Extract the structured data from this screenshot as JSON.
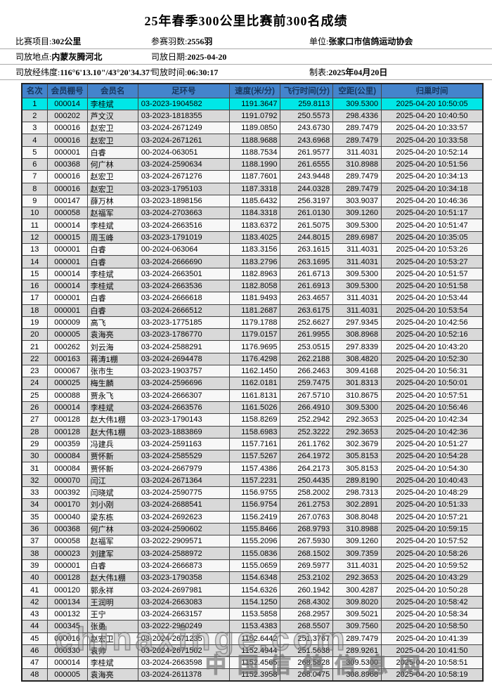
{
  "title": "25年春季300公里比赛前300名成绩",
  "info_rows": [
    [
      {
        "label": "比赛项目:",
        "value": "302公里"
      },
      {
        "label": "参赛羽数:",
        "value": "2556羽"
      },
      {
        "label": "单位:",
        "value": "张家口市信鸽运动协会"
      }
    ],
    [
      {
        "label": "司放地点:",
        "value": "内蒙灰腾河北"
      },
      {
        "label": "司放日期:",
        "value": "2025-04-20"
      }
    ],
    [
      {
        "label": "司放经纬度:",
        "value": "116°6'13.10\"/43°20'34.37\""
      },
      {
        "label": "司放时间:",
        "value": "06:30:17"
      },
      {
        "label": "制表:",
        "value": "2025年04月20日"
      }
    ]
  ],
  "watermark": {
    "latin": "chinaxinge.com",
    "cn": "中国信鸽信息网"
  },
  "colors": {
    "header_bg": "#4484cc",
    "header_text": "#17365d",
    "highlight_row": "#00e7e7",
    "even_row": "#d9d9d9",
    "odd_row": "#f7f7f7"
  },
  "table": {
    "columns": [
      "名次",
      "会员棚号",
      "会员名",
      "足环号",
      "速度(米/分)",
      "飞行时间(分)",
      "空距(公里)",
      "归巢时间"
    ],
    "rows": [
      [
        "1",
        "000014",
        "李桂斌",
        "03-2023-1904582",
        "1191.3647",
        "259.8113",
        "309.5300",
        "2025-04-20 10:50:05"
      ],
      [
        "2",
        "000202",
        "芦文汉",
        "03-2023-1818355",
        "1191.0792",
        "250.5573",
        "298.4336",
        "2025-04-20 10:40:50"
      ],
      [
        "3",
        "000016",
        "赵宏卫",
        "03-2024-2671249",
        "1189.0850",
        "243.6730",
        "289.7479",
        "2025-04-20 10:33:57"
      ],
      [
        "4",
        "000016",
        "赵宏卫",
        "03-2024-2671261",
        "1188.9688",
        "243.6968",
        "289.7479",
        "2025-04-20 10:33:58"
      ],
      [
        "5",
        "000001",
        "白睿",
        "00-2024-063051",
        "1188.7534",
        "261.9577",
        "311.4031",
        "2025-04-20 10:52:14"
      ],
      [
        "6",
        "000368",
        "何广林",
        "03-2024-2590634",
        "1188.1990",
        "261.6555",
        "310.8988",
        "2025-04-20 10:51:56"
      ],
      [
        "7",
        "000016",
        "赵宏卫",
        "03-2024-2671276",
        "1187.7601",
        "243.9448",
        "289.7479",
        "2025-04-20 10:34:13"
      ],
      [
        "8",
        "000016",
        "赵宏卫",
        "03-2023-1795103",
        "1187.3318",
        "244.0328",
        "289.7479",
        "2025-04-20 10:34:18"
      ],
      [
        "9",
        "000147",
        "薛万林",
        "03-2023-1898156",
        "1185.6432",
        "256.3197",
        "303.9037",
        "2025-04-20 10:46:36"
      ],
      [
        "10",
        "000058",
        "赵福军",
        "03-2024-2703663",
        "1184.3318",
        "261.0130",
        "309.1260",
        "2025-04-20 10:51:17"
      ],
      [
        "11",
        "000014",
        "李桂斌",
        "03-2024-2663516",
        "1183.6372",
        "261.5075",
        "309.5300",
        "2025-04-20 10:51:47"
      ],
      [
        "12",
        "000015",
        "周玉峰",
        "03-2023-1791019",
        "1183.4025",
        "244.8015",
        "289.6987",
        "2025-04-20 10:35:05"
      ],
      [
        "13",
        "000001",
        "白睿",
        "00-2024-063064",
        "1183.3156",
        "263.1615",
        "311.4031",
        "2025-04-20 10:53:26"
      ],
      [
        "14",
        "000001",
        "白睿",
        "03-2024-2666690",
        "1183.2796",
        "263.1695",
        "311.4031",
        "2025-04-20 10:53:27"
      ],
      [
        "15",
        "000014",
        "李桂斌",
        "03-2024-2663501",
        "1182.8963",
        "261.6713",
        "309.5300",
        "2025-04-20 10:51:57"
      ],
      [
        "16",
        "000014",
        "李桂斌",
        "03-2024-2663536",
        "1182.8058",
        "261.6913",
        "309.5300",
        "2025-04-20 10:51:58"
      ],
      [
        "17",
        "000001",
        "白睿",
        "03-2024-2666618",
        "1181.9493",
        "263.4657",
        "311.4031",
        "2025-04-20 10:53:44"
      ],
      [
        "18",
        "000001",
        "白睿",
        "03-2024-2666512",
        "1181.2687",
        "263.6175",
        "311.4031",
        "2025-04-20 10:53:54"
      ],
      [
        "19",
        "000009",
        "高飞",
        "03-2023-1775185",
        "1179.1788",
        "252.6627",
        "297.9345",
        "2025-04-20 10:42:56"
      ],
      [
        "20",
        "000005",
        "袁海亮",
        "03-2023-1786770",
        "1179.0157",
        "261.9955",
        "308.8968",
        "2025-04-20 10:52:16"
      ],
      [
        "21",
        "000262",
        "刘云海",
        "03-2024-2588291",
        "1176.9695",
        "253.0515",
        "297.8339",
        "2025-04-20 10:43:20"
      ],
      [
        "22",
        "000163",
        "蒋涛1棚",
        "03-2024-2694478",
        "1176.4298",
        "262.2188",
        "308.4820",
        "2025-04-20 10:52:30"
      ],
      [
        "23",
        "000067",
        "张市生",
        "03-2023-1903757",
        "1162.1450",
        "266.2463",
        "309.4168",
        "2025-04-20 10:56:31"
      ],
      [
        "24",
        "000025",
        "梅生麟",
        "03-2024-2596696",
        "1162.0181",
        "259.7475",
        "301.8313",
        "2025-04-20 10:50:01"
      ],
      [
        "25",
        "000088",
        "贾永飞",
        "03-2024-2666307",
        "1161.8131",
        "267.5710",
        "310.8675",
        "2025-04-20 10:57:51"
      ],
      [
        "26",
        "000014",
        "李桂斌",
        "03-2024-2663576",
        "1161.5026",
        "266.4910",
        "309.5300",
        "2025-04-20 10:56:46"
      ],
      [
        "27",
        "000128",
        "赵大伟1棚",
        "03-2023-1790143",
        "1158.8269",
        "252.2942",
        "292.3653",
        "2025-04-20 10:42:34"
      ],
      [
        "28",
        "000128",
        "赵大伟1棚",
        "03-2023-1883869",
        "1158.6983",
        "252.3222",
        "292.3653",
        "2025-04-20 10:42:36"
      ],
      [
        "29",
        "000359",
        "冯建兵",
        "03-2024-2591163",
        "1157.7161",
        "261.1762",
        "302.3679",
        "2025-04-20 10:51:27"
      ],
      [
        "30",
        "000084",
        "贾怀新",
        "03-2024-2585529",
        "1157.5267",
        "264.1972",
        "305.8153",
        "2025-04-20 10:54:28"
      ],
      [
        "31",
        "000084",
        "贾怀新",
        "03-2024-2667979",
        "1157.4386",
        "264.2173",
        "305.8153",
        "2025-04-20 10:54:30"
      ],
      [
        "32",
        "000070",
        "闫江",
        "03-2024-2671364",
        "1157.2231",
        "250.4435",
        "289.8190",
        "2025-04-20 10:40:43"
      ],
      [
        "33",
        "000392",
        "闫晓斌",
        "03-2024-2590775",
        "1156.9755",
        "258.2002",
        "298.7313",
        "2025-04-20 10:48:29"
      ],
      [
        "34",
        "000170",
        "刘小刚",
        "03-2024-2688541",
        "1156.9754",
        "261.2753",
        "302.2891",
        "2025-04-20 10:51:33"
      ],
      [
        "35",
        "000040",
        "梁东栋",
        "03-2024-2692623",
        "1156.2419",
        "267.0763",
        "308.8048",
        "2025-04-20 10:57:21"
      ],
      [
        "36",
        "000368",
        "何广林",
        "03-2024-2590602",
        "1155.8466",
        "268.9793",
        "310.8988",
        "2025-04-20 10:59:15"
      ],
      [
        "37",
        "000058",
        "赵福军",
        "03-2022-2909571",
        "1155.2096",
        "267.5930",
        "309.1260",
        "2025-04-20 10:57:52"
      ],
      [
        "38",
        "000023",
        "刘建军",
        "03-2024-2588972",
        "1155.0836",
        "268.1502",
        "309.7359",
        "2025-04-20 10:58:26"
      ],
      [
        "39",
        "000001",
        "白睿",
        "03-2024-2666873",
        "1155.0659",
        "269.5977",
        "311.4031",
        "2025-04-20 10:59:52"
      ],
      [
        "40",
        "000128",
        "赵大伟1棚",
        "03-2023-1790358",
        "1154.6348",
        "253.2102",
        "292.3653",
        "2025-04-20 10:43:29"
      ],
      [
        "41",
        "000120",
        "郭永祥",
        "03-2024-2697981",
        "1154.6326",
        "260.1942",
        "300.4287",
        "2025-04-20 10:50:28"
      ],
      [
        "42",
        "000134",
        "王润明",
        "03-2024-2663083",
        "1154.1250",
        "268.4302",
        "309.8020",
        "2025-04-20 10:58:42"
      ],
      [
        "43",
        "000132",
        "王宁",
        "03-2024-2663157",
        "1153.5858",
        "268.2957",
        "309.5021",
        "2025-04-20 10:58:34"
      ],
      [
        "44",
        "000345",
        "张勇",
        "03-2022-2960249",
        "1153.4383",
        "268.5507",
        "309.7560",
        "2025-04-20 10:58:50"
      ],
      [
        "45",
        "000016",
        "赵宏卫",
        "03-2024-2671235",
        "1152.6442",
        "251.3767",
        "289.7479",
        "2025-04-20 10:41:39"
      ],
      [
        "46",
        "000330",
        "袁帅",
        "03-2024-2671502",
        "1152.4944",
        "251.5638",
        "289.9261",
        "2025-04-20 10:41:50"
      ],
      [
        "47",
        "000014",
        "李桂斌",
        "03-2024-2663598",
        "1152.4565",
        "268.5828",
        "309.5300",
        "2025-04-20 10:58:51"
      ],
      [
        "48",
        "000005",
        "袁海亮",
        "03-2024-2611378",
        "1152.3958",
        "268.0475",
        "308.8968",
        "2025-04-20 10:58:19"
      ]
    ]
  }
}
